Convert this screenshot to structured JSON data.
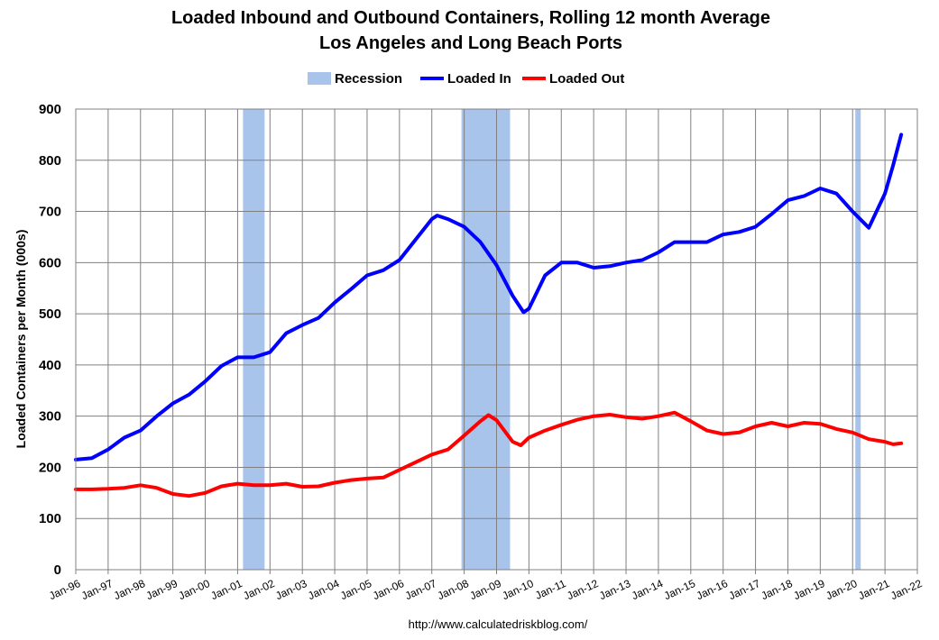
{
  "chart_data": {
    "type": "line",
    "title": "Loaded Inbound and Outbound Containers, Rolling 12 month Average",
    "subtitle": "Los Angeles and Long Beach Ports",
    "ylabel": "Loaded Containers per Month (000s)",
    "xlabel": "",
    "ylim": [
      0,
      900
    ],
    "yticks": [
      0,
      100,
      200,
      300,
      400,
      500,
      600,
      700,
      800,
      900
    ],
    "xlim": [
      "Jan-96",
      "Jan-22"
    ],
    "xticks": [
      "Jan-96",
      "Jan-97",
      "Jan-98",
      "Jan-99",
      "Jan-00",
      "Jan-01",
      "Jan-02",
      "Jan-03",
      "Jan-04",
      "Jan-05",
      "Jan-06",
      "Jan-07",
      "Jan-08",
      "Jan-09",
      "Jan-10",
      "Jan-11",
      "Jan-12",
      "Jan-13",
      "Jan-14",
      "Jan-15",
      "Jan-16",
      "Jan-17",
      "Jan-18",
      "Jan-19",
      "Jan-20",
      "Jan-21",
      "Jan-22"
    ],
    "grid": true,
    "legend_position": "top",
    "legend": [
      "Recession",
      "Loaded In",
      "Loaded Out"
    ],
    "recessions": [
      {
        "name": "Recession",
        "start": "Mar-01",
        "end": "Nov-01"
      },
      {
        "name": "Recession",
        "start": "Dec-07",
        "end": "Jun-09"
      },
      {
        "name": "Recession",
        "start": "Feb-20",
        "end": "Apr-20"
      }
    ],
    "series": [
      {
        "name": "Loaded In",
        "color": "#0000ff",
        "points": [
          [
            "Jan-96",
            215
          ],
          [
            "Jul-96",
            218
          ],
          [
            "Jan-97",
            235
          ],
          [
            "Jul-97",
            258
          ],
          [
            "Jan-98",
            272
          ],
          [
            "Jul-98",
            300
          ],
          [
            "Jan-99",
            325
          ],
          [
            "Jul-99",
            342
          ],
          [
            "Jan-00",
            368
          ],
          [
            "Jul-00",
            398
          ],
          [
            "Jan-01",
            415
          ],
          [
            "Jul-01",
            415
          ],
          [
            "Jan-02",
            425
          ],
          [
            "Jul-02",
            462
          ],
          [
            "Jan-03",
            478
          ],
          [
            "Jul-03",
            492
          ],
          [
            "Jan-04",
            522
          ],
          [
            "Jul-04",
            548
          ],
          [
            "Jan-05",
            575
          ],
          [
            "Jul-05",
            585
          ],
          [
            "Jan-06",
            605
          ],
          [
            "Jul-06",
            645
          ],
          [
            "Jan-07",
            685
          ],
          [
            "Mar-07",
            692
          ],
          [
            "Jul-07",
            685
          ],
          [
            "Jan-08",
            670
          ],
          [
            "Jul-08",
            640
          ],
          [
            "Jan-09",
            595
          ],
          [
            "Jul-09",
            535
          ],
          [
            "Nov-09",
            503
          ],
          [
            "Jan-10",
            510
          ],
          [
            "Jul-10",
            575
          ],
          [
            "Jan-11",
            600
          ],
          [
            "Jul-11",
            600
          ],
          [
            "Jan-12",
            590
          ],
          [
            "Jul-12",
            593
          ],
          [
            "Jan-13",
            600
          ],
          [
            "Jul-13",
            605
          ],
          [
            "Jan-14",
            620
          ],
          [
            "Jul-14",
            640
          ],
          [
            "Jan-15",
            640
          ],
          [
            "Jul-15",
            640
          ],
          [
            "Jan-16",
            655
          ],
          [
            "Jul-16",
            660
          ],
          [
            "Jan-17",
            670
          ],
          [
            "Jul-17",
            695
          ],
          [
            "Jan-18",
            722
          ],
          [
            "Jul-18",
            730
          ],
          [
            "Jan-19",
            745
          ],
          [
            "Jul-19",
            735
          ],
          [
            "Jan-20",
            700
          ],
          [
            "Jul-20",
            668
          ],
          [
            "Jan-21",
            735
          ],
          [
            "Apr-21",
            790
          ],
          [
            "Jul-21",
            850
          ]
        ]
      },
      {
        "name": "Loaded Out",
        "color": "#ff0000",
        "points": [
          [
            "Jan-96",
            157
          ],
          [
            "Jul-96",
            157
          ],
          [
            "Jan-97",
            158
          ],
          [
            "Jul-97",
            160
          ],
          [
            "Jan-98",
            165
          ],
          [
            "Jul-98",
            160
          ],
          [
            "Jan-99",
            148
          ],
          [
            "Jul-99",
            144
          ],
          [
            "Jan-00",
            150
          ],
          [
            "Jul-00",
            163
          ],
          [
            "Jan-01",
            168
          ],
          [
            "Jul-01",
            165
          ],
          [
            "Jan-02",
            165
          ],
          [
            "Jul-02",
            168
          ],
          [
            "Jan-03",
            162
          ],
          [
            "Jul-03",
            163
          ],
          [
            "Jan-04",
            170
          ],
          [
            "Jul-04",
            175
          ],
          [
            "Jan-05",
            178
          ],
          [
            "Jul-05",
            180
          ],
          [
            "Jan-06",
            195
          ],
          [
            "Jul-06",
            210
          ],
          [
            "Jan-07",
            225
          ],
          [
            "Jul-07",
            235
          ],
          [
            "Jan-08",
            262
          ],
          [
            "Jul-08",
            290
          ],
          [
            "Oct-08",
            302
          ],
          [
            "Jan-09",
            292
          ],
          [
            "Jul-09",
            250
          ],
          [
            "Oct-09",
            243
          ],
          [
            "Jan-10",
            258
          ],
          [
            "Jul-10",
            272
          ],
          [
            "Jan-11",
            283
          ],
          [
            "Jul-11",
            293
          ],
          [
            "Jan-12",
            300
          ],
          [
            "Jul-12",
            303
          ],
          [
            "Jan-13",
            298
          ],
          [
            "Jul-13",
            295
          ],
          [
            "Jan-14",
            300
          ],
          [
            "Jul-14",
            307
          ],
          [
            "Jan-15",
            290
          ],
          [
            "Jul-15",
            272
          ],
          [
            "Jan-16",
            265
          ],
          [
            "Jul-16",
            268
          ],
          [
            "Jan-17",
            280
          ],
          [
            "Jul-17",
            287
          ],
          [
            "Jan-18",
            280
          ],
          [
            "Jul-18",
            287
          ],
          [
            "Jan-19",
            285
          ],
          [
            "Jul-19",
            275
          ],
          [
            "Jan-20",
            268
          ],
          [
            "Jul-20",
            255
          ],
          [
            "Jan-21",
            250
          ],
          [
            "Apr-21",
            245
          ],
          [
            "Jul-21",
            247
          ]
        ]
      }
    ],
    "recession_color": "#a9c4ea",
    "source_note": "http://www.calculatedriskblog.com/"
  }
}
